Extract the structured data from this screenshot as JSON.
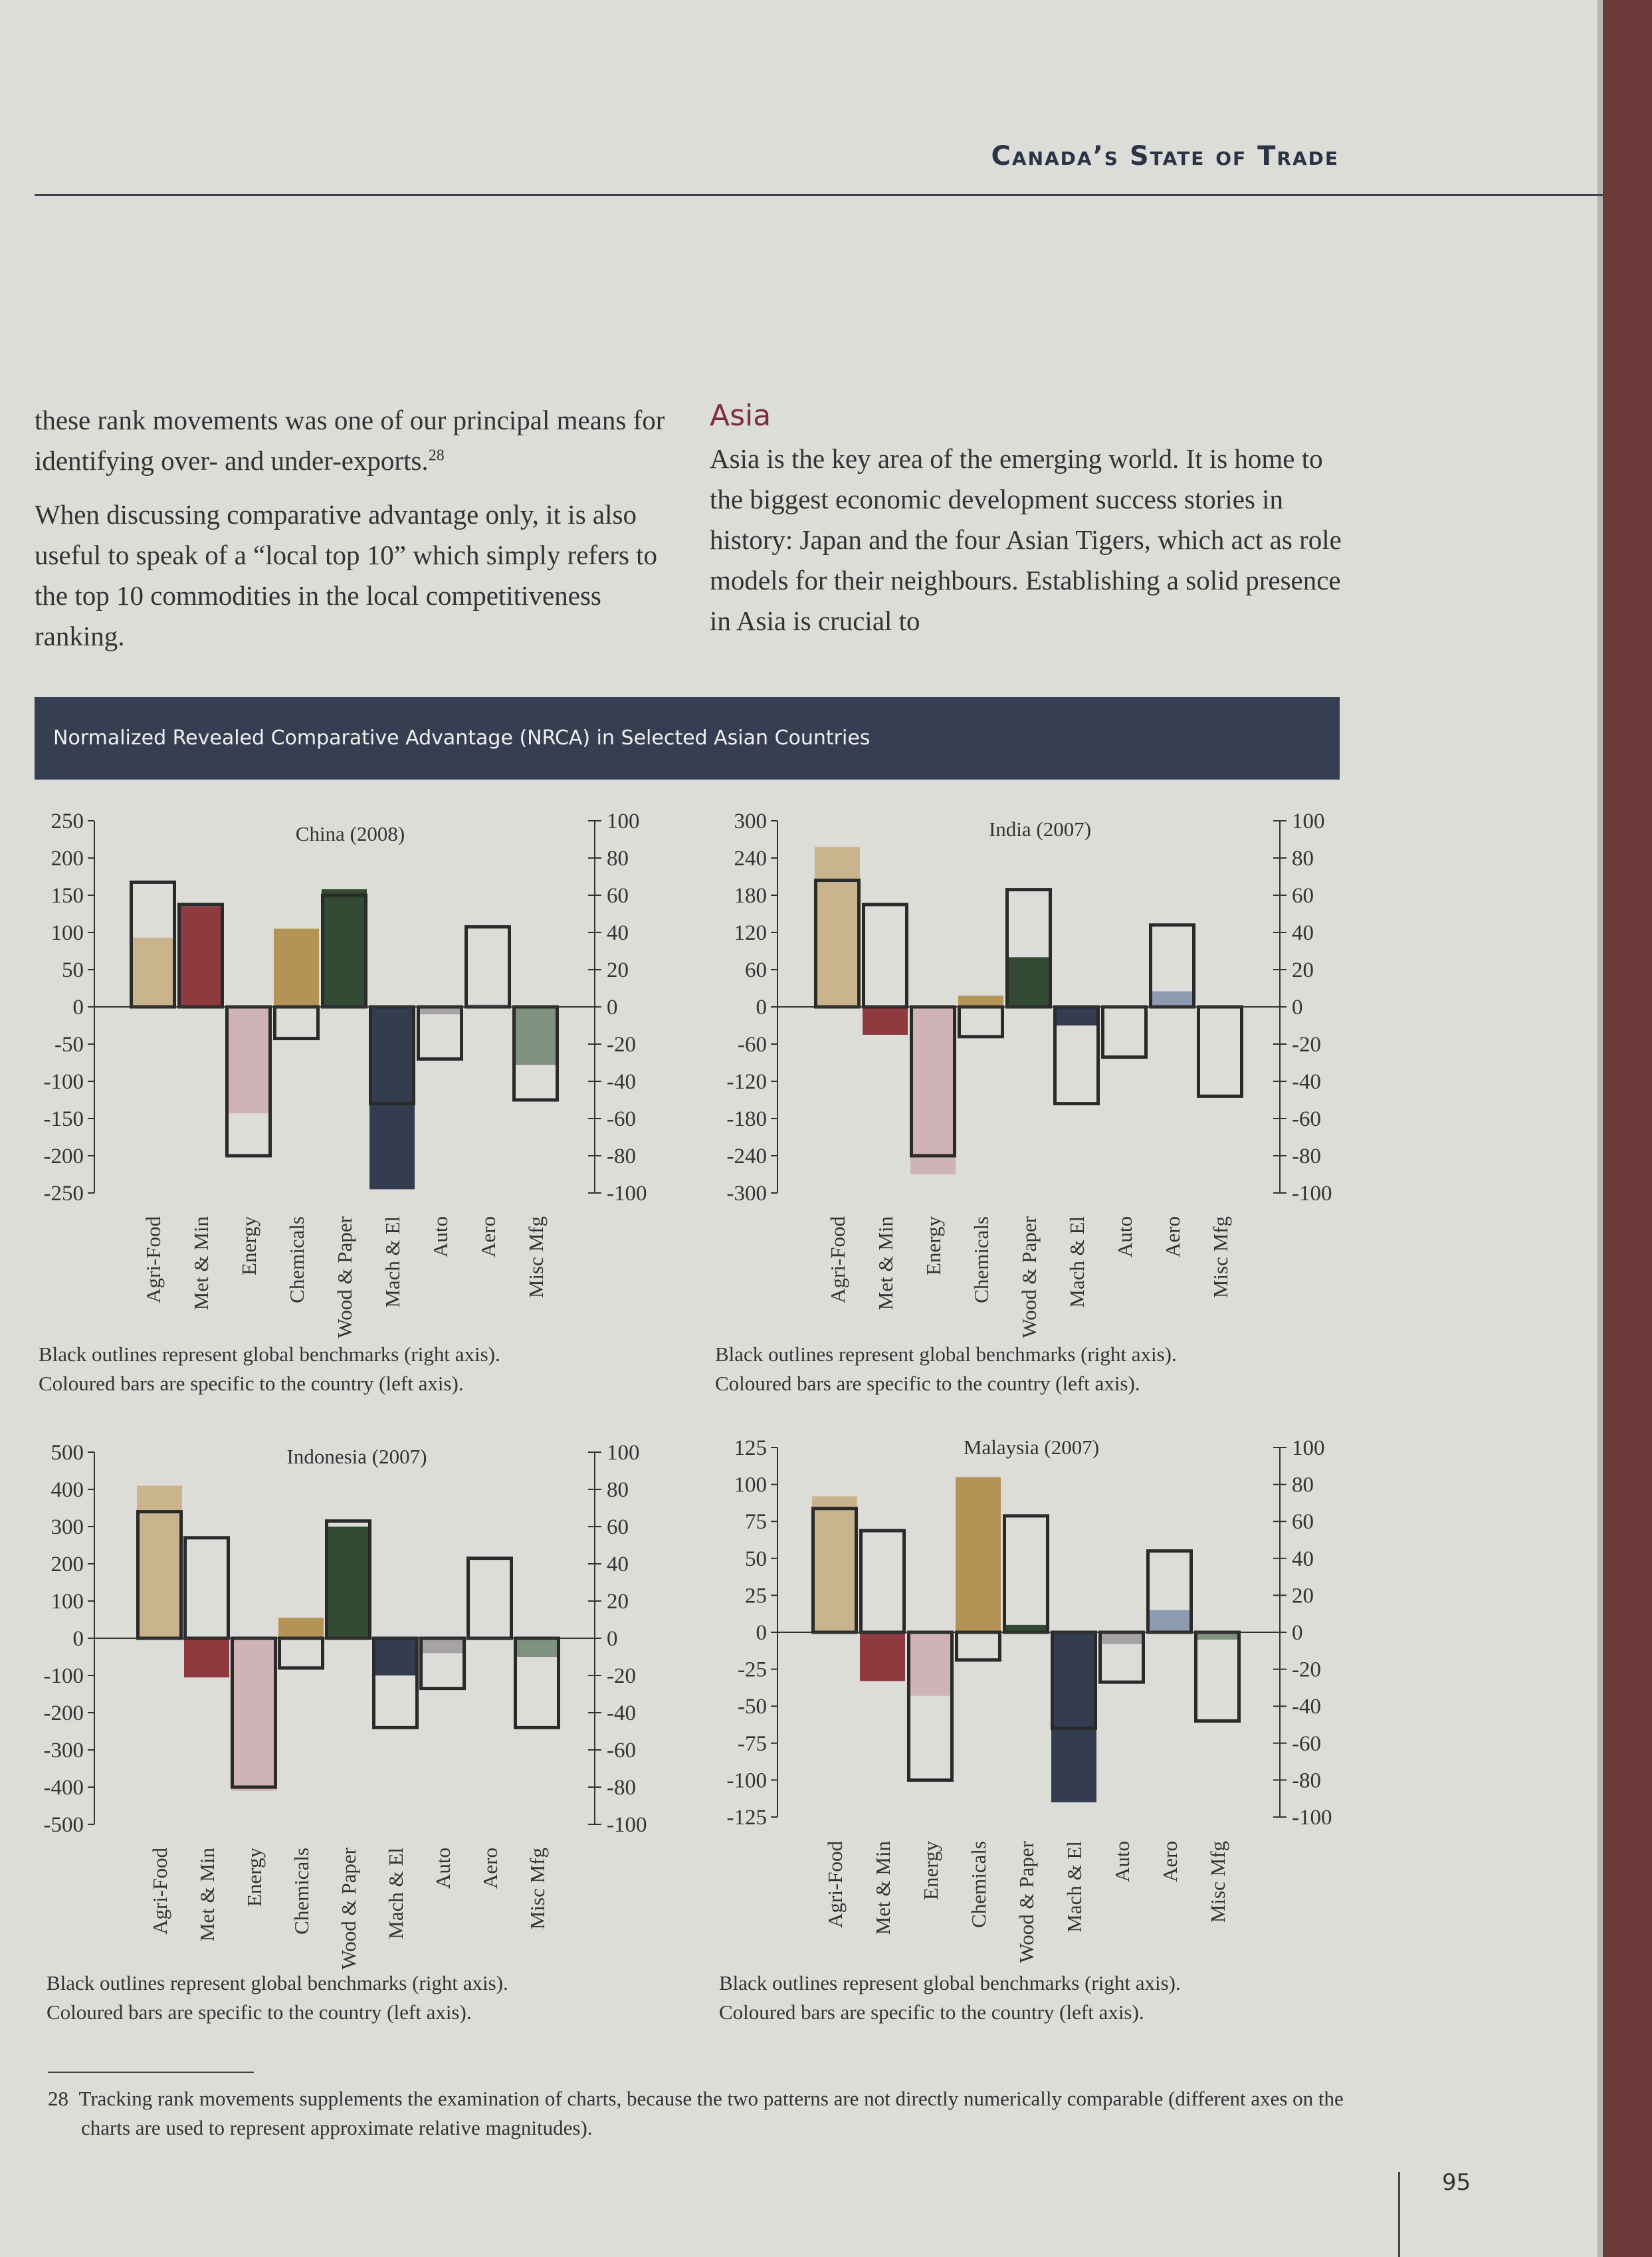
{
  "running_head": "Canada’s State of Trade",
  "left_column": {
    "p1": "these rank movements was one of our principal means for identifying over- and under-exports.",
    "p1_footnote_ref": "28",
    "p2": "When discussing comparative advantage only, it is also useful to speak of a “local top 10” which simply refers to the top 10 commodities in the local competitiveness ranking."
  },
  "right_column": {
    "heading": "Asia",
    "p1": "Asia is the key area of the emerging world. It is home to the biggest economic development success stories in history: Japan and the four Asian Tigers, which act as role models for their neighbours. Establishing a solid presence in Asia is crucial to"
  },
  "figure_title": "Normalized Revealed Comparative Advantage (NRCA) in Selected Asian Countries",
  "colors": {
    "Agri-Food": "#c9b48e",
    "Met & Min": "#8e3a3f",
    "Energy": "#cfb3b6",
    "Chemicals": "#b39456",
    "Wood & Paper": "#334a34",
    "Mach & El": "#343c4f",
    "Auto": "#a7a2a6",
    "Aero": "#8c9bb0",
    "Misc Mfg": "#7f917f"
  },
  "chart_data": [
    {
      "type": "bar",
      "title": "China (2008)",
      "categories": [
        "Agri-Food",
        "Met & Min",
        "Energy",
        "Chemicals",
        "Wood & Paper",
        "Mach & El",
        "Auto",
        "Aero",
        "Misc Mfg"
      ],
      "left_axis": {
        "ylim": [
          -250,
          250
        ],
        "ticks": [
          "250",
          "200",
          "150",
          "100",
          "50",
          "0",
          "-50",
          "-100",
          "-150",
          "-200",
          "-250"
        ]
      },
      "right_axis": {
        "ylim": [
          -100,
          100
        ],
        "ticks": [
          "100",
          "80",
          "60",
          "40",
          "20",
          "0",
          "-20",
          "-40",
          "-60",
          "-80",
          "-100"
        ]
      },
      "series": [
        {
          "name": "Coloured bars are specific to the country (left axis).",
          "values": [
            93,
            135,
            -143,
            105,
            158,
            -245,
            -10,
            3,
            -78
          ]
        },
        {
          "name": "Black outlines represent global benchmarks (right axis).",
          "values": [
            67,
            55,
            -80,
            -17,
            60,
            -52,
            -28,
            43,
            -50
          ]
        }
      ],
      "caption_1": "Black outlines represent global benchmarks (right axis).",
      "caption_2": "Coloured bars are specific to the country (left axis)."
    },
    {
      "type": "bar",
      "title": "India (2007)",
      "categories": [
        "Agri-Food",
        "Met & Min",
        "Energy",
        "Chemicals",
        "Wood & Paper",
        "Mach & El",
        "Auto",
        "Aero",
        "Misc Mfg"
      ],
      "left_axis": {
        "ylim": [
          -300,
          300
        ],
        "ticks": [
          "300",
          "240",
          "180",
          "120",
          "60",
          "0",
          "-60",
          "-120",
          "-180",
          "-240",
          "-300"
        ]
      },
      "right_axis": {
        "ylim": [
          -100,
          100
        ],
        "ticks": [
          "100",
          "80",
          "60",
          "40",
          "20",
          "0",
          "-20",
          "-40",
          "-60",
          "-80",
          "-100"
        ]
      },
      "series": [
        {
          "name": "Coloured bars are specific to the country (left axis).",
          "values": [
            258,
            -45,
            -270,
            18,
            80,
            -30,
            0,
            25,
            0
          ]
        },
        {
          "name": "Black outlines represent global benchmarks (right axis).",
          "values": [
            68,
            55,
            -80,
            -16,
            63,
            -52,
            -27,
            44,
            -48
          ]
        }
      ],
      "caption_1": "Black outlines represent global benchmarks (right axis).",
      "caption_2": "Coloured bars are specific to the country (left axis)."
    },
    {
      "type": "bar",
      "title": "Indonesia (2007)",
      "categories": [
        "Agri-Food",
        "Met & Min",
        "Energy",
        "Chemicals",
        "Wood & Paper",
        "Mach & El",
        "Auto",
        "Aero",
        "Misc Mfg"
      ],
      "left_axis": {
        "ylim": [
          -500,
          500
        ],
        "ticks": [
          "500",
          "400",
          "300",
          "200",
          "100",
          "0",
          "-100",
          "-200",
          "-300",
          "-400",
          "-500"
        ]
      },
      "right_axis": {
        "ylim": [
          -100,
          100
        ],
        "ticks": [
          "100",
          "80",
          "60",
          "40",
          "20",
          "0",
          "-20",
          "-40",
          "-60",
          "-80",
          "-100"
        ]
      },
      "series": [
        {
          "name": "Coloured bars are specific to the country (left axis).",
          "values": [
            410,
            -105,
            -410,
            55,
            300,
            -100,
            -40,
            -5,
            -50
          ]
        },
        {
          "name": "Black outlines represent global benchmarks (right axis).",
          "values": [
            68,
            54,
            -80,
            -16,
            63,
            -48,
            -27,
            43,
            -48
          ]
        }
      ],
      "caption_1": "Black outlines represent global benchmarks (right axis).",
      "caption_2": "Coloured bars are specific to the country (left axis)."
    },
    {
      "type": "bar",
      "title": "Malaysia (2007)",
      "categories": [
        "Agri-Food",
        "Met & Min",
        "Energy",
        "Chemicals",
        "Wood & Paper",
        "Mach & El",
        "Auto",
        "Aero",
        "Misc Mfg"
      ],
      "left_axis": {
        "ylim": [
          -125,
          125
        ],
        "ticks": [
          "125",
          "100",
          "75",
          "50",
          "25",
          "0",
          "-25",
          "-50",
          "-75",
          "-100",
          "-125"
        ]
      },
      "right_axis": {
        "ylim": [
          -100,
          100
        ],
        "ticks": [
          "100",
          "80",
          "60",
          "40",
          "20",
          "0",
          "-20",
          "-40",
          "-60",
          "-80",
          "-100"
        ]
      },
      "series": [
        {
          "name": "Coloured bars are specific to the country (left axis).",
          "values": [
            92,
            -33,
            -43,
            105,
            5,
            -115,
            -8,
            15,
            -5
          ]
        },
        {
          "name": "Black outlines represent global benchmarks (right axis).",
          "values": [
            67,
            55,
            -80,
            -15,
            63,
            -52,
            -27,
            44,
            -48
          ]
        }
      ],
      "caption_1": "Black outlines represent global benchmarks (right axis).",
      "caption_2": "Coloured bars are specific to the country (left axis)."
    }
  ],
  "footnote": {
    "number": "28",
    "text": "Tracking rank movements supplements the examination of charts, because the two patterns are not directly numerically comparable (different axes on the charts are used to represent approximate relative magnitudes)."
  },
  "page_number": "95"
}
